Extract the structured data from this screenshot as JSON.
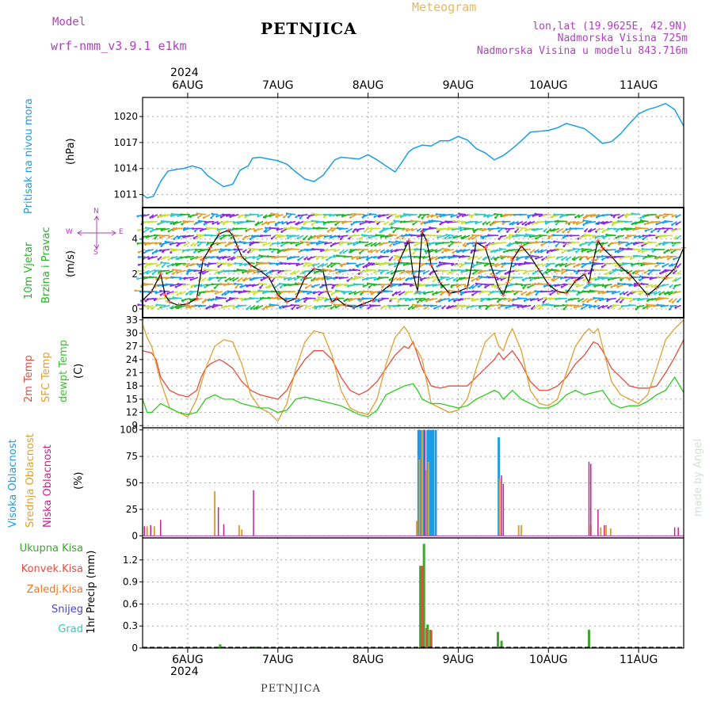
{
  "header": {
    "model_label": "Model",
    "model_name": "wrf-nmm_v3.9.1 e1km",
    "title": "PETNJICA",
    "meteogram": "Meteogram",
    "lonlat": "lon,lat (19.9625E, 42.9N)",
    "altitude": "Nadmorska Visina 725m",
    "model_altitude": "Nadmorska Visina u modelu 843.716m"
  },
  "footer": {
    "station": "PETNJICA",
    "credit": "made by Angel"
  },
  "time_axis": {
    "year": "2024",
    "days": [
      "6AUG",
      "7AUG",
      "8AUG",
      "9AUG",
      "10AUG",
      "11AUG"
    ],
    "start_day": 5.5,
    "end_day": 11.5
  },
  "colors": {
    "pressure": "#1a9ee6",
    "wind_label": "#22b522",
    "temp2m": "#e84c3d",
    "sfc": "#e0a030",
    "dewpt": "#2ecc20",
    "high_cloud": "#1a9ee6",
    "mid_cloud": "#e0a030",
    "low_cloud": "#c8208c",
    "total_rain": "#3aa829",
    "conv_rain": "#e84c3d",
    "frozen_rain": "#f07828",
    "snow": "#4444cc",
    "hail": "#30c8c8",
    "purple_text": "#b040c0"
  },
  "panels": {
    "pressure": {
      "ylabel_main": "Pritisak na nivou mora",
      "unit": "(hPa)"
    },
    "wind": {
      "ylabel_main": "10m Vjetar",
      "ylabel_sub": "Brzina i Pravac",
      "unit": "(m/s)",
      "compass_n": "N",
      "compass_w": "W",
      "compass_e": "E",
      "compass_s": "S"
    },
    "temp": {
      "label_2m": "2m Temp",
      "label_sfc": "SFC Temp",
      "label_dew": "dewpt Temp",
      "unit": "(C)"
    },
    "cloud": {
      "label_high": "Visoka Oblacnost",
      "label_mid": "Srednja Oblacnost",
      "label_low": "Niska Oblacnost",
      "unit": "(%)"
    },
    "precip": {
      "ylabel": "1hr Precip (mm)",
      "legend": [
        "Ukupna Kisa",
        "Konvek.Kisa",
        "Zaledj.Kisa",
        "Snijeg",
        "Grad"
      ]
    }
  },
  "chart_data": [
    {
      "type": "line",
      "title": "Pritisak na nivou mora",
      "ylabel": "(hPa)",
      "ylim": [
        1009.5,
        1022.2
      ],
      "yticks": [
        1011,
        1014,
        1017,
        1020
      ],
      "grid": true,
      "series": [
        {
          "name": "Pritisak na nivou mora",
          "x": [
            5.5,
            5.55,
            5.62,
            5.7,
            5.78,
            5.87,
            5.95,
            6.05,
            6.15,
            6.22,
            6.3,
            6.4,
            6.5,
            6.58,
            6.67,
            6.72,
            6.8,
            6.9,
            7.0,
            7.1,
            7.2,
            7.3,
            7.4,
            7.5,
            7.58,
            7.63,
            7.7,
            7.8,
            7.9,
            8.0,
            8.1,
            8.2,
            8.3,
            8.38,
            8.45,
            8.5,
            8.6,
            8.7,
            8.8,
            8.9,
            9.0,
            9.1,
            9.2,
            9.3,
            9.4,
            9.5,
            9.6,
            9.7,
            9.8,
            9.9,
            10.0,
            10.1,
            10.2,
            10.3,
            10.4,
            10.5,
            10.6,
            10.7,
            10.8,
            10.9,
            11.0,
            11.1,
            11.2,
            11.3,
            11.4,
            11.5
          ],
          "y": [
            1011.0,
            1010.6,
            1010.8,
            1012.5,
            1013.7,
            1013.9,
            1014.0,
            1014.3,
            1014.0,
            1013.2,
            1012.6,
            1011.9,
            1012.2,
            1013.8,
            1014.3,
            1015.2,
            1015.3,
            1015.1,
            1014.9,
            1014.5,
            1013.6,
            1012.8,
            1012.5,
            1013.2,
            1014.3,
            1015.0,
            1015.3,
            1015.2,
            1015.1,
            1015.6,
            1015.0,
            1014.3,
            1013.6,
            1014.8,
            1015.9,
            1016.3,
            1016.7,
            1016.6,
            1017.2,
            1017.2,
            1017.7,
            1017.3,
            1016.3,
            1015.8,
            1015.0,
            1015.5,
            1016.3,
            1017.2,
            1018.2,
            1018.3,
            1018.4,
            1018.7,
            1019.2,
            1018.9,
            1018.6,
            1017.8,
            1016.9,
            1017.1,
            1018.0,
            1019.2,
            1020.3,
            1020.8,
            1021.1,
            1021.5,
            1020.8,
            1018.9
          ]
        }
      ]
    },
    {
      "type": "line",
      "title": "10m Vjetar Brzina i Pravac",
      "ylabel": "(m/s)",
      "ylim": [
        -0.5,
        5.8
      ],
      "yticks": [
        0,
        2,
        4
      ],
      "grid": true,
      "series": [
        {
          "name": "Brzina",
          "x": [
            5.5,
            5.6,
            5.7,
            5.75,
            5.8,
            5.9,
            6.0,
            6.1,
            6.17,
            6.25,
            6.35,
            6.45,
            6.5,
            6.55,
            6.6,
            6.7,
            6.8,
            6.9,
            7.0,
            7.1,
            7.2,
            7.3,
            7.4,
            7.5,
            7.55,
            7.6,
            7.65,
            7.75,
            7.85,
            7.95,
            8.05,
            8.15,
            8.25,
            8.35,
            8.45,
            8.5,
            8.55,
            8.6,
            8.65,
            8.7,
            8.8,
            8.9,
            9.0,
            9.1,
            9.2,
            9.3,
            9.4,
            9.45,
            9.5,
            9.55,
            9.6,
            9.7,
            9.8,
            9.9,
            10.0,
            10.1,
            10.2,
            10.3,
            10.4,
            10.45,
            10.5,
            10.55,
            10.6,
            10.7,
            10.8,
            10.9,
            11.0,
            11.1,
            11.2,
            11.3,
            11.4,
            11.5
          ],
          "y": [
            0.5,
            1.0,
            2.0,
            0.8,
            0.4,
            0.2,
            0.3,
            0.6,
            2.8,
            3.5,
            4.3,
            4.5,
            4.2,
            3.6,
            3.0,
            2.5,
            2.2,
            1.8,
            0.8,
            0.4,
            0.6,
            1.8,
            2.3,
            2.2,
            1.0,
            0.4,
            0.6,
            0.2,
            0.1,
            0.3,
            0.5,
            1.0,
            1.4,
            2.8,
            3.9,
            2.0,
            1.0,
            4.4,
            3.9,
            2.5,
            1.5,
            0.9,
            1.0,
            1.2,
            3.8,
            3.5,
            1.9,
            1.2,
            0.8,
            1.5,
            2.8,
            3.6,
            3.0,
            2.2,
            1.4,
            1.0,
            0.9,
            1.6,
            2.0,
            1.5,
            2.8,
            3.9,
            3.5,
            3.0,
            2.4,
            2.0,
            1.4,
            0.8,
            1.2,
            1.8,
            2.3,
            3.5
          ]
        }
      ]
    },
    {
      "type": "line",
      "title": "2m Temp / SFC Temp / dewpt Temp",
      "ylabel": "(C)",
      "ylim": [
        8.5,
        33.5
      ],
      "yticks": [
        9,
        12,
        15,
        18,
        21,
        24,
        27,
        30,
        33
      ],
      "grid": true,
      "series": [
        {
          "name": "2m Temp",
          "x": [
            5.5,
            5.6,
            5.65,
            5.7,
            5.8,
            5.9,
            6.0,
            6.1,
            6.15,
            6.2,
            6.25,
            6.3,
            6.35,
            6.4,
            6.5,
            6.6,
            6.7,
            6.8,
            6.9,
            7.0,
            7.1,
            7.2,
            7.3,
            7.4,
            7.5,
            7.6,
            7.7,
            7.8,
            7.9,
            8.0,
            8.1,
            8.2,
            8.3,
            8.4,
            8.45,
            8.5,
            8.55,
            8.6,
            8.65,
            8.7,
            8.8,
            8.9,
            9.0,
            9.1,
            9.2,
            9.3,
            9.4,
            9.45,
            9.5,
            9.55,
            9.6,
            9.7,
            9.8,
            9.9,
            10.0,
            10.1,
            10.2,
            10.3,
            10.4,
            10.45,
            10.5,
            10.55,
            10.6,
            10.7,
            10.8,
            10.9,
            11.0,
            11.1,
            11.2,
            11.3,
            11.4,
            11.5
          ],
          "y": [
            26,
            25.5,
            24,
            20,
            17,
            16,
            15.5,
            17,
            20,
            22,
            23,
            23.5,
            24,
            23.5,
            22,
            19,
            17,
            16,
            15.5,
            15,
            17,
            21,
            24,
            26,
            26,
            24,
            20,
            17,
            16,
            17,
            19,
            22,
            25,
            27,
            26.5,
            28,
            25,
            22,
            20,
            18,
            17.5,
            18,
            18,
            18,
            20,
            22,
            24,
            25.5,
            24,
            25,
            26,
            23,
            19,
            17,
            17,
            18,
            20,
            23,
            25,
            26.5,
            28,
            27.5,
            26,
            22,
            20,
            18,
            17.5,
            17.5,
            18,
            21,
            24.5,
            28.5
          ]
        },
        {
          "name": "SFC Temp",
          "x": [
            5.5,
            5.55,
            5.6,
            5.7,
            5.8,
            5.9,
            6.0,
            6.1,
            6.2,
            6.3,
            6.4,
            6.5,
            6.6,
            6.7,
            6.8,
            6.9,
            7.0,
            7.1,
            7.2,
            7.3,
            7.4,
            7.5,
            7.6,
            7.7,
            7.8,
            7.9,
            8.0,
            8.1,
            8.2,
            8.3,
            8.4,
            8.45,
            8.5,
            8.55,
            8.6,
            8.7,
            8.8,
            8.9,
            9.0,
            9.1,
            9.2,
            9.3,
            9.4,
            9.45,
            9.5,
            9.55,
            9.6,
            9.7,
            9.8,
            9.9,
            10.0,
            10.1,
            10.2,
            10.3,
            10.4,
            10.45,
            10.5,
            10.55,
            10.6,
            10.7,
            10.8,
            10.9,
            11.0,
            11.1,
            11.2,
            11.3,
            11.4,
            11.5
          ],
          "y": [
            32,
            29,
            27,
            19,
            13,
            12,
            11,
            15,
            22,
            27,
            28.5,
            28,
            23,
            16,
            13,
            12,
            10,
            14,
            22,
            28,
            30.5,
            30,
            25,
            17,
            13,
            12,
            11.5,
            15,
            23,
            29,
            31.5,
            30,
            27.5,
            26,
            24,
            14,
            13,
            12,
            12.5,
            15,
            22,
            28,
            30,
            27,
            26,
            29,
            31,
            26,
            17,
            14,
            13.5,
            15,
            21,
            27,
            30,
            31,
            30,
            31,
            27,
            19,
            16,
            15,
            14,
            16,
            22,
            28.5,
            31,
            33
          ]
        },
        {
          "name": "dewpt Temp",
          "x": [
            5.5,
            5.55,
            5.6,
            5.7,
            5.8,
            5.9,
            6.0,
            6.1,
            6.2,
            6.3,
            6.4,
            6.5,
            6.6,
            6.7,
            6.8,
            6.9,
            7.0,
            7.1,
            7.2,
            7.3,
            7.4,
            7.5,
            7.6,
            7.7,
            7.8,
            7.9,
            8.0,
            8.1,
            8.2,
            8.3,
            8.4,
            8.5,
            8.55,
            8.6,
            8.7,
            8.8,
            8.9,
            9.0,
            9.1,
            9.2,
            9.3,
            9.4,
            9.45,
            9.5,
            9.6,
            9.7,
            9.8,
            9.9,
            10.0,
            10.1,
            10.2,
            10.3,
            10.4,
            10.5,
            10.6,
            10.7,
            10.8,
            10.9,
            11.0,
            11.1,
            11.2,
            11.3,
            11.4,
            11.5
          ],
          "y": [
            15,
            12,
            12,
            14,
            13,
            12,
            11.5,
            12,
            15,
            16,
            15,
            15,
            14,
            13.5,
            13,
            13,
            12,
            12.5,
            15,
            15.5,
            15,
            14.5,
            14,
            13.5,
            12.5,
            11.5,
            11,
            12.5,
            16,
            17,
            18,
            18.5,
            17,
            15,
            14,
            14,
            13.5,
            13,
            13.5,
            15,
            16,
            17,
            16.5,
            15,
            17,
            15,
            14,
            13,
            13,
            14,
            16,
            17,
            16,
            16.5,
            17,
            14,
            13,
            13.5,
            13.5,
            14.5,
            16,
            17,
            20,
            16.5
          ]
        }
      ]
    },
    {
      "type": "bar",
      "title": "Visoka / Srednja / Niska Oblacnost",
      "ylabel": "(%)",
      "ylim": [
        -2,
        102
      ],
      "yticks": [
        0,
        25,
        50,
        75,
        100
      ],
      "grid": true,
      "series": [
        {
          "name": "Visoka Oblacnost",
          "x": [
            8.56,
            8.58,
            8.62,
            8.66,
            8.68,
            8.7,
            8.72,
            8.75,
            9.45
          ],
          "y": [
            100,
            100,
            100,
            100,
            100,
            100,
            100,
            100,
            93
          ]
        },
        {
          "name": "Srednja Oblacnost",
          "x": [
            5.55,
            5.63,
            6.3,
            6.57,
            6.6,
            8.54,
            8.57,
            8.6,
            8.64,
            8.67,
            9.46,
            9.67,
            9.7,
            10.47,
            10.58,
            10.64,
            10.69
          ],
          "y": [
            9,
            9,
            42,
            10,
            6,
            14,
            72,
            100,
            62,
            70,
            54,
            10,
            10,
            10,
            8,
            10,
            7
          ]
        },
        {
          "name": "Niska Oblacnost",
          "x": [
            5.52,
            5.59,
            5.7,
            6.34,
            6.4,
            6.73,
            8.63,
            9.48,
            9.5,
            10.45,
            10.47,
            10.55,
            10.62,
            11.4,
            11.44
          ],
          "y": [
            9,
            10,
            15,
            27,
            11,
            43,
            100,
            57,
            49,
            70,
            68,
            25,
            10,
            8,
            8
          ]
        }
      ]
    },
    {
      "type": "bar",
      "title": "1hr Precip",
      "ylabel": "1hr Precip (mm)",
      "ylim": [
        0,
        1.5
      ],
      "yticks": [
        0,
        0.3,
        0.6,
        0.9,
        1.2
      ],
      "grid": true,
      "series": [
        {
          "name": "Ukupna Kisa",
          "x": [
            6.36,
            6.75,
            8.58,
            8.62,
            8.66,
            8.69,
            9.44,
            9.48,
            10.45
          ],
          "y": [
            0.05,
            0.02,
            1.12,
            1.42,
            0.32,
            0.25,
            0.22,
            0.1,
            0.25
          ]
        },
        {
          "name": "Konvek.Kisa",
          "x": [
            8.6,
            8.65,
            8.7
          ],
          "y": [
            1.12,
            0.27,
            0.24
          ]
        },
        {
          "name": "Zaledj.Kisa",
          "x": [],
          "y": []
        },
        {
          "name": "Snijeg",
          "x": [],
          "y": []
        },
        {
          "name": "Grad",
          "x": [],
          "y": []
        }
      ]
    }
  ]
}
